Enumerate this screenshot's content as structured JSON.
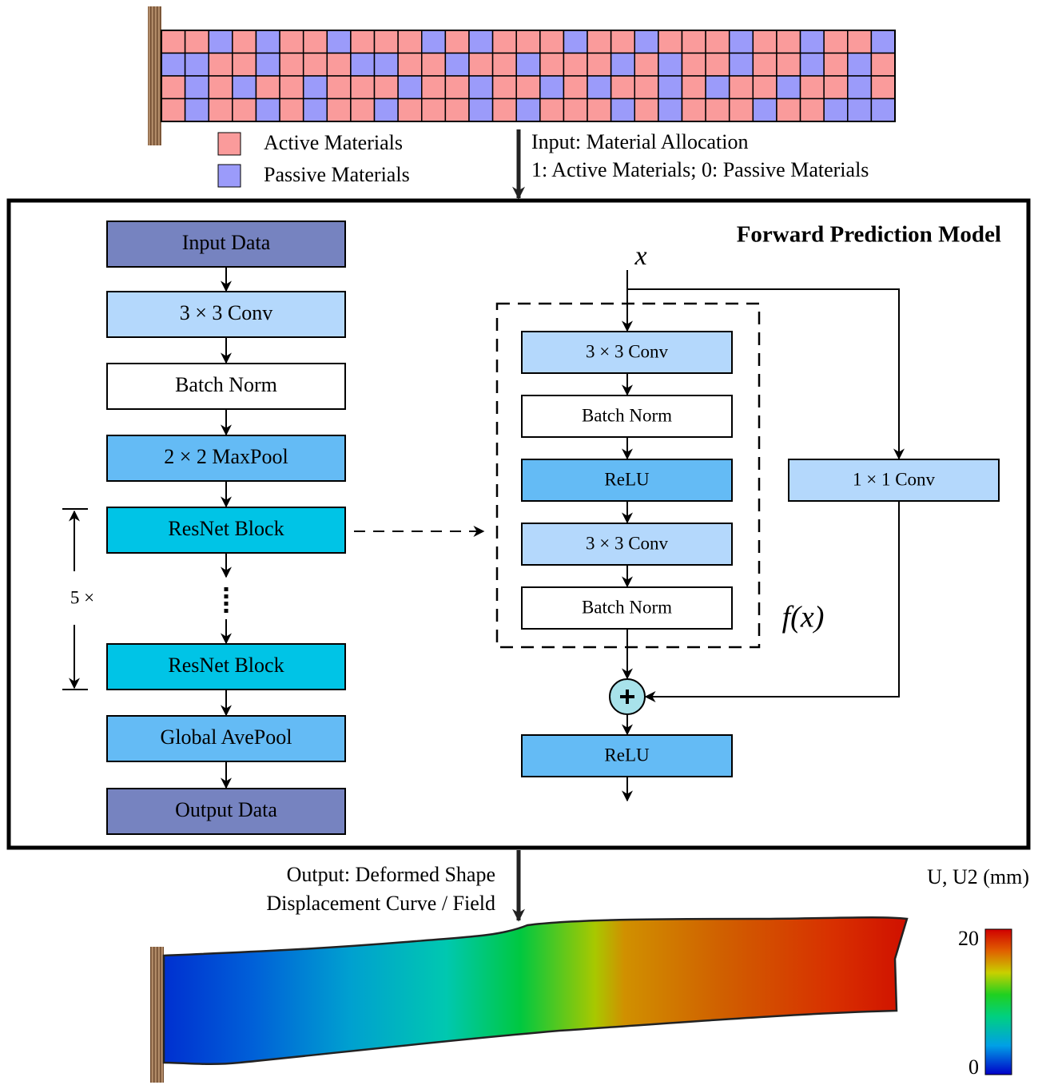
{
  "material_grid": [
    [
      1,
      1,
      0,
      1,
      0,
      1,
      1,
      0,
      1,
      1,
      1,
      0,
      1,
      0,
      1,
      1,
      1,
      0,
      1,
      1,
      0,
      1,
      1,
      1,
      0,
      1,
      1,
      0,
      1,
      1,
      0
    ],
    [
      0,
      0,
      1,
      1,
      0,
      1,
      1,
      1,
      0,
      0,
      1,
      1,
      0,
      1,
      1,
      0,
      1,
      1,
      1,
      0,
      1,
      0,
      1,
      1,
      0,
      1,
      1,
      0,
      1,
      0,
      1
    ],
    [
      1,
      0,
      1,
      0,
      1,
      1,
      0,
      1,
      1,
      1,
      0,
      1,
      1,
      0,
      1,
      1,
      0,
      1,
      0,
      1,
      1,
      0,
      1,
      0,
      1,
      1,
      0,
      1,
      1,
      0,
      1
    ],
    [
      1,
      0,
      1,
      1,
      0,
      1,
      0,
      1,
      1,
      0,
      1,
      1,
      1,
      0,
      1,
      0,
      1,
      1,
      1,
      0,
      1,
      0,
      1,
      1,
      1,
      0,
      1,
      1,
      0,
      0,
      0
    ]
  ],
  "legend": {
    "active": "Active Materials",
    "passive": "Passive Materials"
  },
  "input_label": [
    "Input: Material Allocation",
    "1: Active Materials;  0: Passive Materials"
  ],
  "title": "Forward Prediction Model",
  "pipeline": [
    "Input Data",
    "3 × 3 Conv",
    "Batch Norm",
    "2 × 2 MaxPool",
    "ResNet Block",
    "ResNet Block",
    "Global AvePool",
    "Output Data"
  ],
  "repeat": "5 ×",
  "resnet": {
    "input": "x",
    "residual": [
      "3 × 3 Conv",
      "Batch Norm",
      "ReLU",
      "3 × 3 Conv",
      "Batch Norm"
    ],
    "function": "f(x)",
    "shortcut": "1 × 1 Conv",
    "output": "ReLU"
  },
  "output_label": [
    "Output: Deformed Shape",
    "Displacement Curve / Field"
  ],
  "colorbar": {
    "title": "U, U2 (mm)",
    "max": "20",
    "min": "0"
  }
}
